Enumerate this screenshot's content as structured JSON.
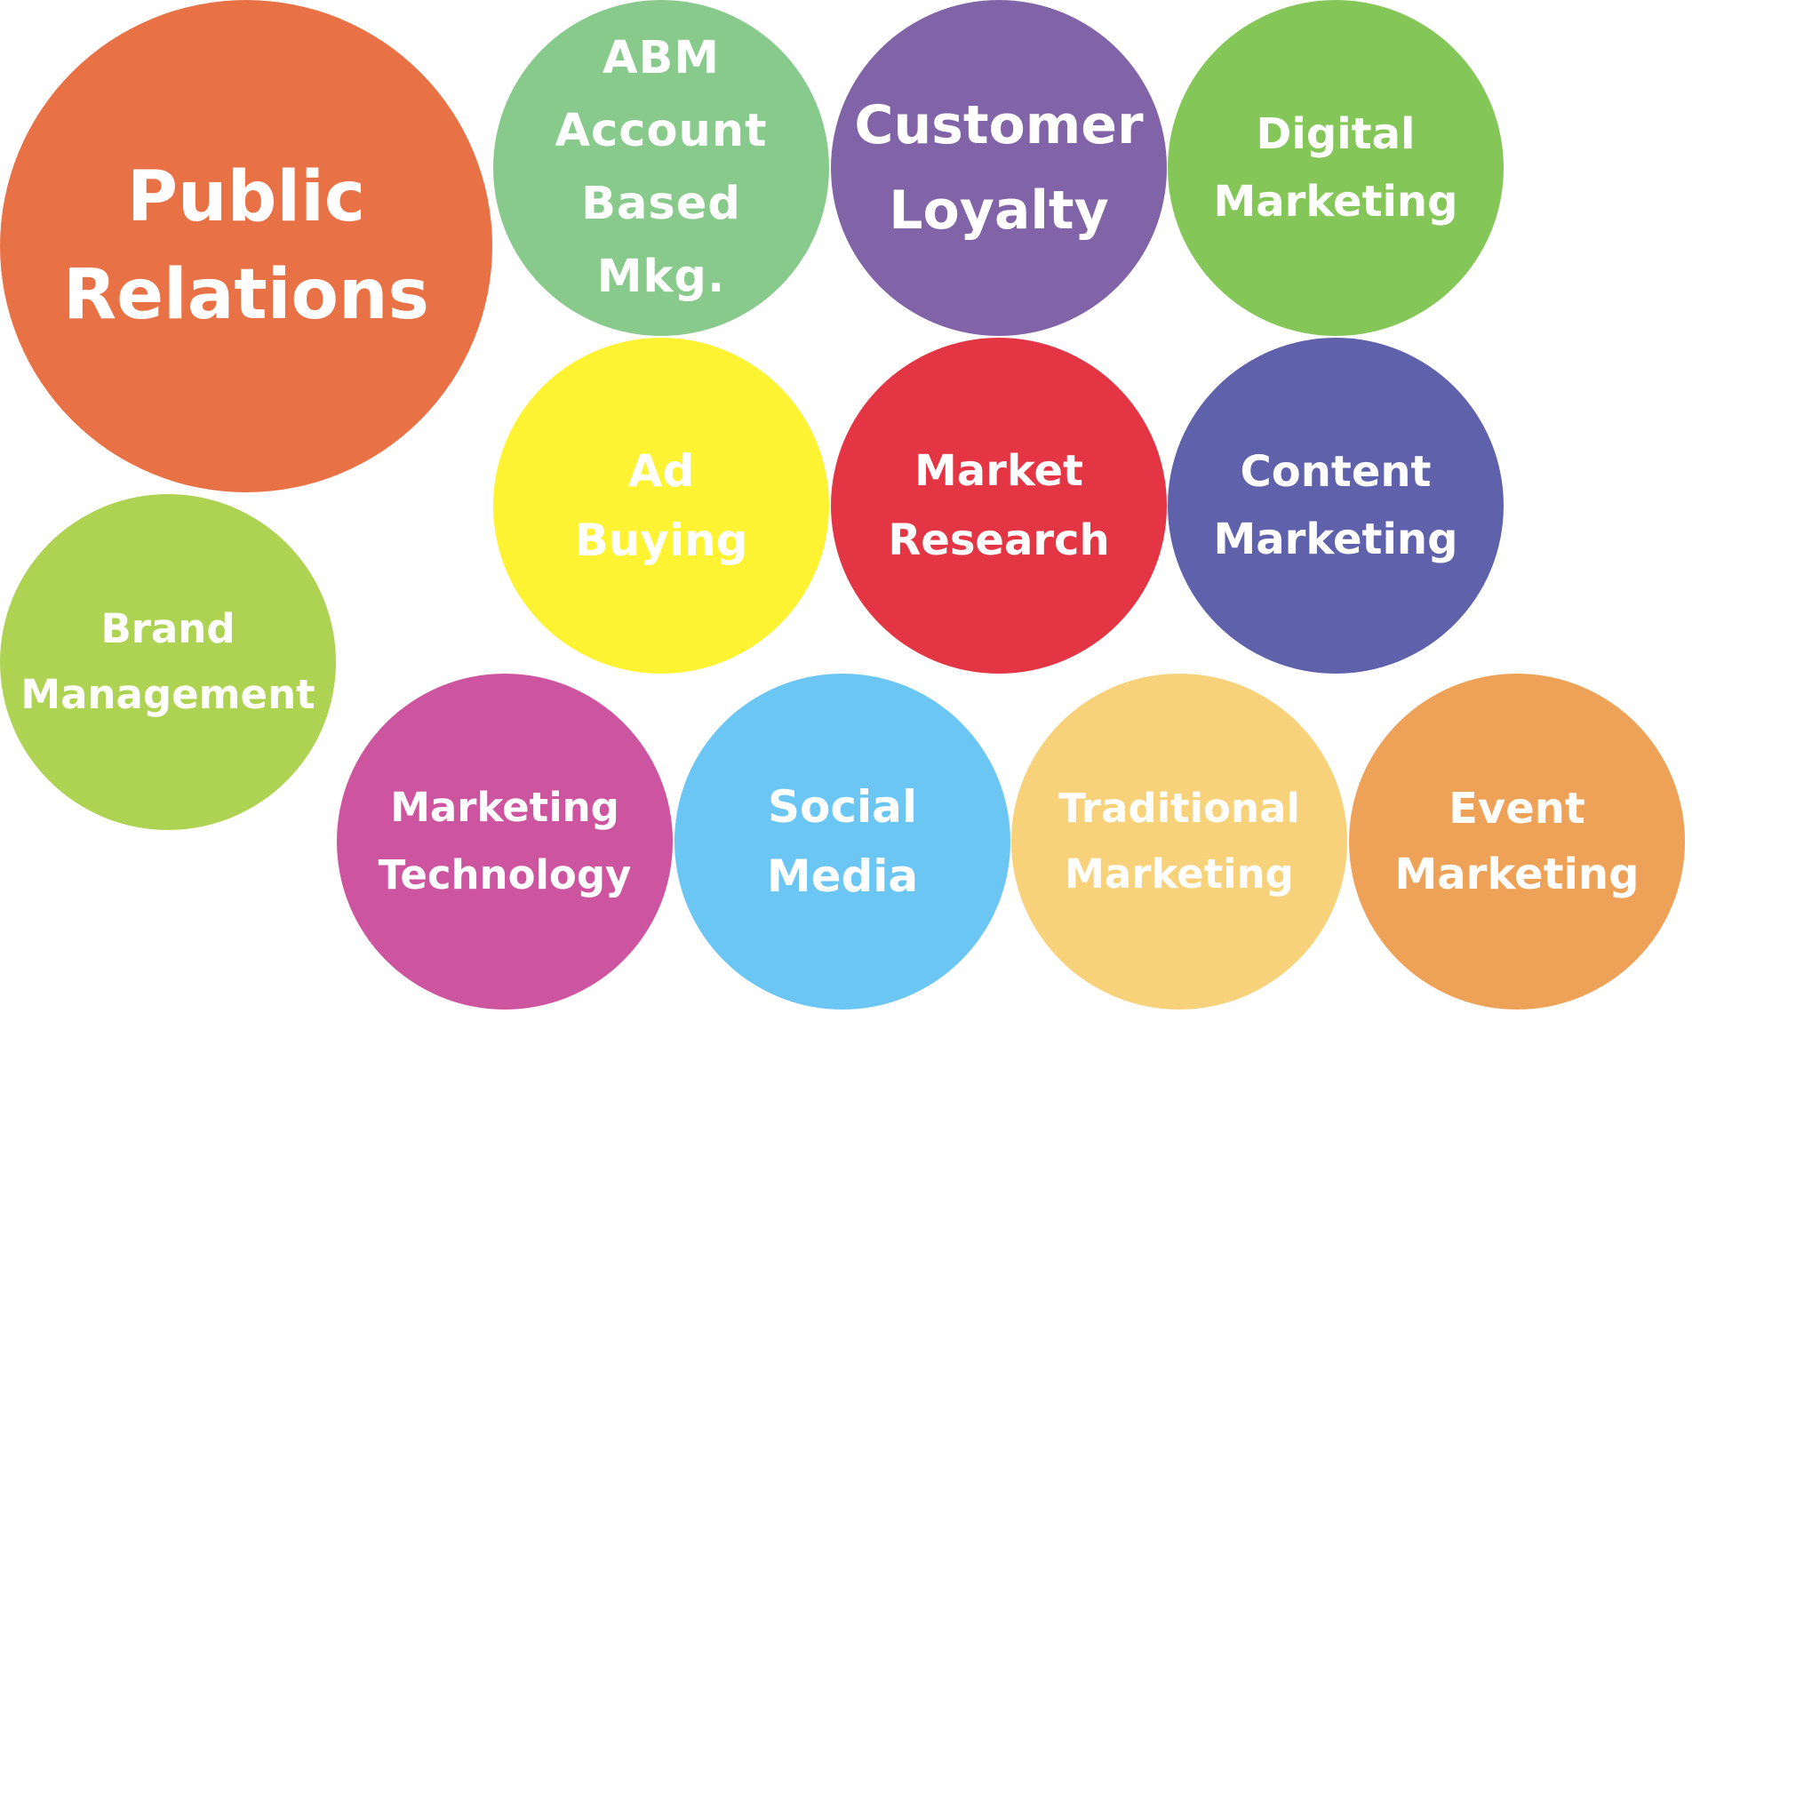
{
  "bubbles": [
    {
      "id": "public-relations",
      "lines": [
        "Public",
        "Relations"
      ],
      "color": "#E87145"
    },
    {
      "id": "abm",
      "lines": [
        "ABM",
        "Account",
        "Based",
        "Mkg."
      ],
      "color": "#88C98C"
    },
    {
      "id": "customer-loyalty",
      "lines": [
        "Customer",
        "Loyalty"
      ],
      "color": "#8163A7"
    },
    {
      "id": "digital-marketing",
      "lines": [
        "Digital",
        "Marketing"
      ],
      "color": "#84C657"
    },
    {
      "id": "ad-buying",
      "lines": [
        "Ad",
        "Buying"
      ],
      "color": "#FDF333"
    },
    {
      "id": "market-research",
      "lines": [
        "Market",
        "Research"
      ],
      "color": "#E33544"
    },
    {
      "id": "content-marketing",
      "lines": [
        "Content",
        "Marketing"
      ],
      "color": "#5F62AA"
    },
    {
      "id": "brand-management",
      "lines": [
        "Brand",
        "Management"
      ],
      "color": "#AED352"
    },
    {
      "id": "marketing-technology",
      "lines": [
        "Marketing",
        "Technology"
      ],
      "color": "#CD549E"
    },
    {
      "id": "social-media",
      "lines": [
        "Social",
        "Media"
      ],
      "color": "#6BC6F3"
    },
    {
      "id": "traditional-marketing",
      "lines": [
        "Traditional",
        "Marketing"
      ],
      "color": "#F7D27B"
    },
    {
      "id": "event-marketing",
      "lines": [
        "Event",
        "Marketing"
      ],
      "color": "#EEA257"
    }
  ]
}
